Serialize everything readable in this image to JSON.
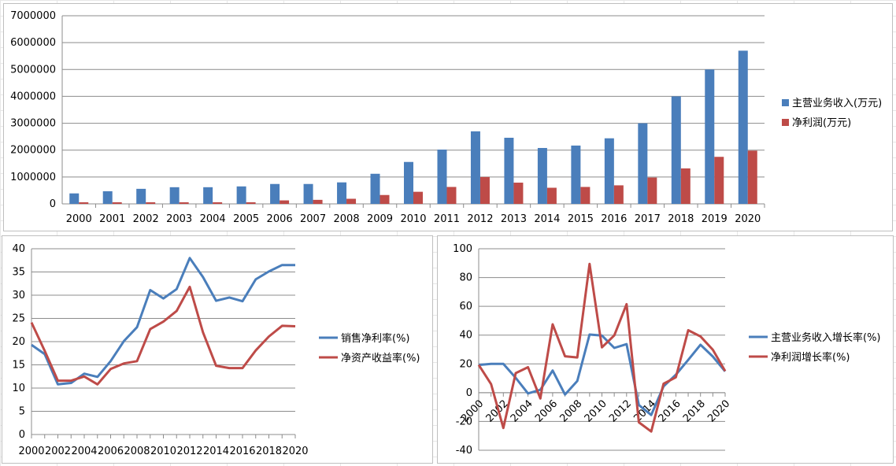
{
  "chart_data": [
    {
      "type": "bar",
      "categories": [
        "2000",
        "2001",
        "2002",
        "2003",
        "2004",
        "2005",
        "2006",
        "2007",
        "2008",
        "2009",
        "2010",
        "2011",
        "2012",
        "2013",
        "2014",
        "2015",
        "2016",
        "2017",
        "2018",
        "2019",
        "2020"
      ],
      "series": [
        {
          "name": "主营业务收入(万元)",
          "color": "#4a7ebb",
          "values": [
            390000,
            470000,
            560000,
            620000,
            620000,
            650000,
            740000,
            740000,
            800000,
            1120000,
            1560000,
            2020000,
            2700000,
            2460000,
            2080000,
            2170000,
            2440000,
            3000000,
            4000000,
            5000000,
            5700000
          ]
        },
        {
          "name": "净利润(万元)",
          "color": "#be4b48",
          "values": [
            60000,
            60000,
            60000,
            60000,
            60000,
            60000,
            130000,
            150000,
            190000,
            330000,
            450000,
            630000,
            1000000,
            790000,
            600000,
            630000,
            690000,
            980000,
            1320000,
            1750000,
            1980000
          ]
        }
      ],
      "ylim": [
        0,
        7000000
      ],
      "yticks": [
        "0",
        "1000000",
        "2000000",
        "3000000",
        "4000000",
        "5000000",
        "6000000",
        "7000000"
      ],
      "grid": true,
      "legend": "right"
    },
    {
      "type": "line",
      "x": [
        "2000",
        "2001",
        "2002",
        "2003",
        "2004",
        "2005",
        "2006",
        "2007",
        "2008",
        "2009",
        "2010",
        "2011",
        "2012",
        "2013",
        "2014",
        "2015",
        "2016",
        "2017",
        "2018",
        "2019",
        "2020"
      ],
      "xticks": [
        "2000",
        "2002",
        "2004",
        "2006",
        "2008",
        "2010",
        "2012",
        "2014",
        "2016",
        "2018",
        "2020"
      ],
      "series": [
        {
          "name": "销售净利率(%)",
          "color": "#4a7ebb",
          "values": [
            19.3,
            17.3,
            10.8,
            11.1,
            13.1,
            12.4,
            15.8,
            20.1,
            23.1,
            31.1,
            29.3,
            31.3,
            38,
            33.9,
            28.8,
            29.5,
            28.7,
            33.4,
            35.1,
            36.5,
            36.5
          ]
        },
        {
          "name": "净资产收益率(%)",
          "color": "#be4b48",
          "values": [
            24.1,
            18,
            11.6,
            11.6,
            12.5,
            10.8,
            14.1,
            15.3,
            15.8,
            22.7,
            24.3,
            26.6,
            31.8,
            22,
            14.8,
            14.3,
            14.3,
            18.1,
            21.1,
            23.4,
            23.3
          ]
        }
      ],
      "ylim": [
        0,
        40
      ],
      "yticks": [
        "0",
        "5",
        "10",
        "15",
        "20",
        "25",
        "30",
        "35",
        "40"
      ],
      "grid": true,
      "legend": "right"
    },
    {
      "type": "line",
      "x": [
        "2000",
        "2001",
        "2002",
        "2003",
        "2004",
        "2005",
        "2006",
        "2007",
        "2008",
        "2009",
        "2010",
        "2011",
        "2012",
        "2013",
        "2014",
        "2015",
        "2016",
        "2017",
        "2018",
        "2019",
        "2020"
      ],
      "xticks": [
        "2000",
        "2002",
        "2004",
        "2006",
        "2008",
        "2010",
        "2012",
        "2014",
        "2016",
        "2018",
        "2020"
      ],
      "series": [
        {
          "name": "主营业务收入增长率(%)",
          "color": "#4a7ebb",
          "values": [
            19.3,
            20,
            20,
            10.3,
            -0.5,
            2,
            15.4,
            -1.3,
            8.1,
            40.4,
            39.7,
            31.1,
            33.7,
            -8.6,
            -15.5,
            4.4,
            12.5,
            22.8,
            33.3,
            25.1,
            14.8
          ]
        },
        {
          "name": "净利润增长率(%)",
          "color": "#be4b48",
          "values": [
            19.3,
            6,
            -24.5,
            13.6,
            17.7,
            -4,
            47.5,
            25.3,
            24.5,
            89.5,
            31.5,
            39.8,
            61.5,
            -20.6,
            -27,
            6.2,
            10.7,
            43.4,
            39.1,
            29.8,
            15
          ]
        }
      ],
      "ylim": [
        -40,
        100
      ],
      "yticks": [
        "-40",
        "-20",
        "0",
        "20",
        "40",
        "60",
        "80",
        "100"
      ],
      "grid": true,
      "legend": "right"
    }
  ]
}
